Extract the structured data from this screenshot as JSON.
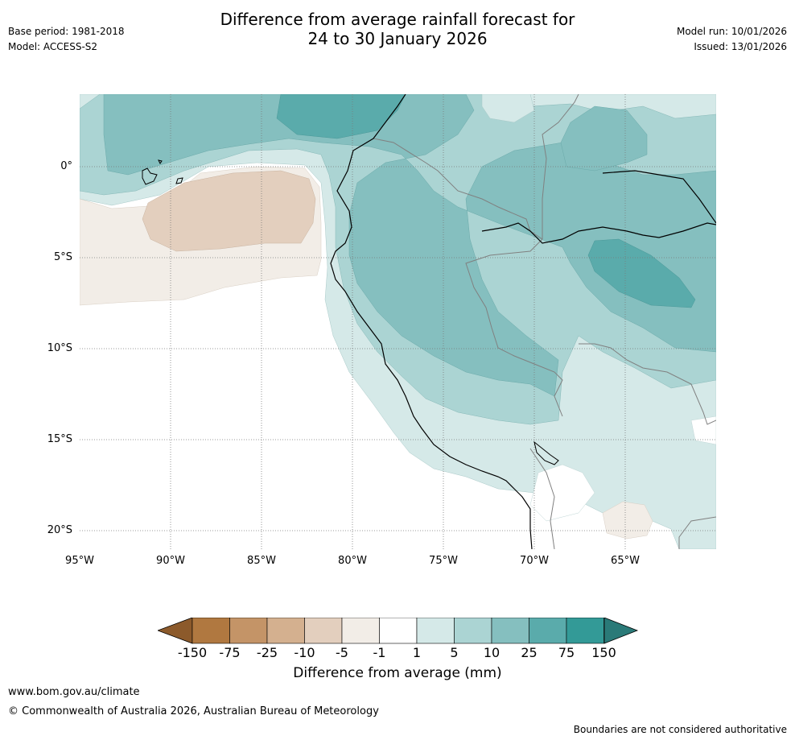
{
  "title": {
    "line1": "Difference from average rainfall forecast for",
    "line2": "24 to 30 January 2026"
  },
  "meta": {
    "base_period": "Base period: 1981-2018",
    "model": "Model: ACCESS-S2",
    "model_run": "Model run: 10/01/2026",
    "issued": "Issued: 13/01/2026"
  },
  "axes": {
    "latitudes": [
      "0°",
      "5°S",
      "10°S",
      "15°S",
      "20°S"
    ],
    "longitudes": [
      "95°W",
      "90°W",
      "85°W",
      "80°W",
      "75°W",
      "70°W",
      "65°W"
    ]
  },
  "legend": {
    "title": "Difference from average (mm)",
    "ticks": [
      "-150",
      "-75",
      "-25",
      "-10",
      "-5",
      "-1",
      "1",
      "5",
      "10",
      "25",
      "75",
      "150"
    ],
    "colors": [
      "#8c5a2b",
      "#b07840",
      "#c49467",
      "#d4b08f",
      "#e3cfbe",
      "#f2ede7",
      "#ffffff",
      "#d5e9e8",
      "#abd4d3",
      "#85bfbf",
      "#5aabab",
      "#339a97",
      "#2a7a78"
    ]
  },
  "footer": {
    "url": "www.bom.gov.au/climate",
    "copyright": "© Commonwealth of Australia 2026, Australian Bureau of Meteorology",
    "disclaimer": "Boundaries are not considered authoritative"
  }
}
